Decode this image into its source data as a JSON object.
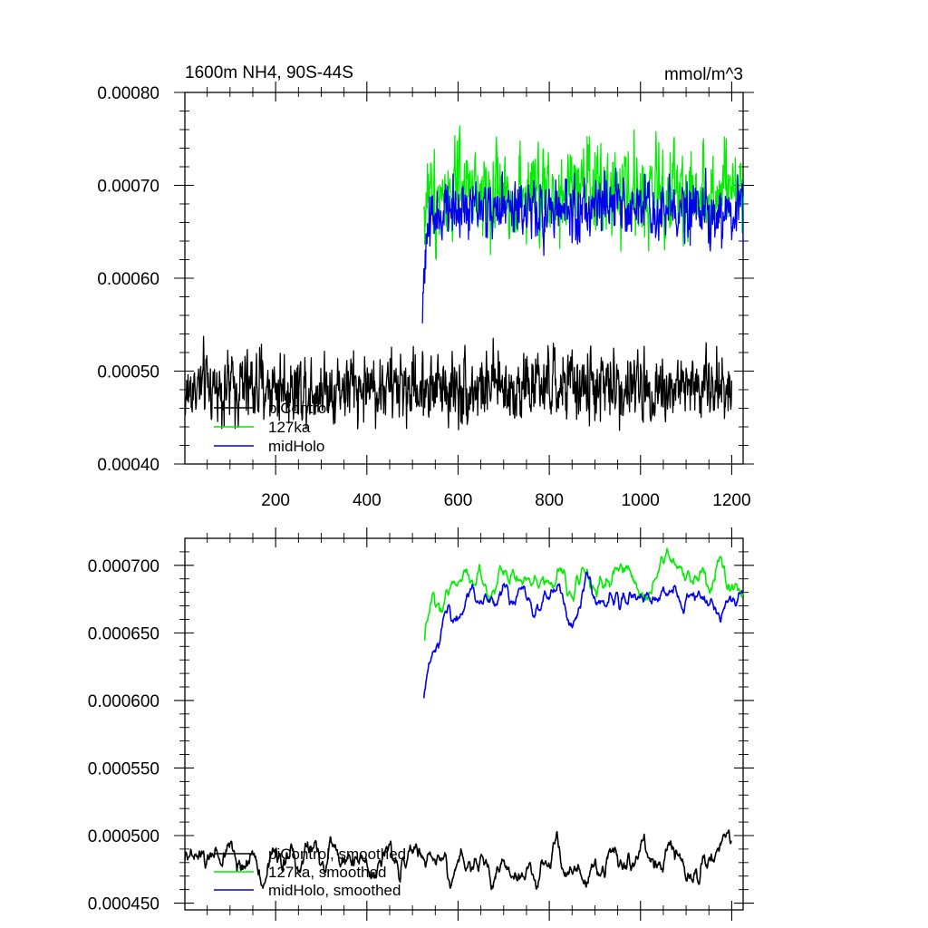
{
  "colors": {
    "piControl": "#000000",
    "k127": "#00ee00",
    "midHolo": "#0000ee"
  },
  "chart_data": [
    {
      "type": "line",
      "title_left": "1600m NH4, 90S-44S",
      "title_right": "mmol/m^3",
      "xlabel": "",
      "ylabel": "",
      "xlim": [
        1,
        1225
      ],
      "ylim": [
        0.0004,
        0.0008
      ],
      "x_ticks": [
        200,
        400,
        600,
        800,
        1000,
        1200
      ],
      "x_tick_labels": [
        "200",
        "400",
        "600",
        "800",
        "1000",
        "1200"
      ],
      "y_ticks": [
        0.0004,
        0.0005,
        0.0006,
        0.0007,
        0.0008
      ],
      "y_tick_labels": [
        "0.00040",
        "0.00050",
        "0.00060",
        "0.00070",
        "0.00080"
      ],
      "grid": false,
      "legend_position": "bottom-left",
      "series": [
        {
          "name": "piControl",
          "color": "#000000",
          "x_start": 1,
          "x_end": 1200,
          "mean": 0.000483,
          "noise": 1.8e-05,
          "start_value": 0.000465
        },
        {
          "name": "127ka",
          "color": "#00ee00",
          "x_start": 525,
          "x_end": 1225,
          "mean": 0.000691,
          "noise": 2.4e-05,
          "start_value": 0.000665
        },
        {
          "name": "midHolo",
          "color": "#0000ee",
          "x_start": 522,
          "x_end": 1225,
          "mean": 0.000674,
          "noise": 1.6e-05,
          "start_value": 0.00054
        }
      ]
    },
    {
      "type": "line",
      "xlim": [
        1,
        1225
      ],
      "ylim": [
        0.000445,
        0.00072
      ],
      "x_ticks": [
        200,
        400,
        600,
        800,
        1000,
        1200
      ],
      "y_ticks": [
        0.00045,
        0.0005,
        0.00055,
        0.0006,
        0.00065,
        0.0007
      ],
      "y_tick_labels": [
        "0.000450",
        "0.000500",
        "0.000550",
        "0.000600",
        "0.000650",
        "0.000700"
      ],
      "grid": false,
      "legend_position": "bottom-left",
      "series": [
        {
          "name": "piControl, smoothed",
          "color": "#000000",
          "x_start": 1,
          "x_end": 1200,
          "mean": 0.000482,
          "noise": 8.5e-06,
          "start_value": 0.00047
        },
        {
          "name": "127ka, smoothed",
          "color": "#00ee00",
          "x_start": 527,
          "x_end": 1225,
          "mean": 0.00069,
          "noise": 7.5e-06,
          "start_value": 0.000655
        },
        {
          "name": "midHolo, smoothed",
          "color": "#0000ee",
          "x_start": 525,
          "x_end": 1225,
          "mean": 0.000675,
          "noise": 7e-06,
          "start_value": 0.00061
        }
      ]
    }
  ]
}
